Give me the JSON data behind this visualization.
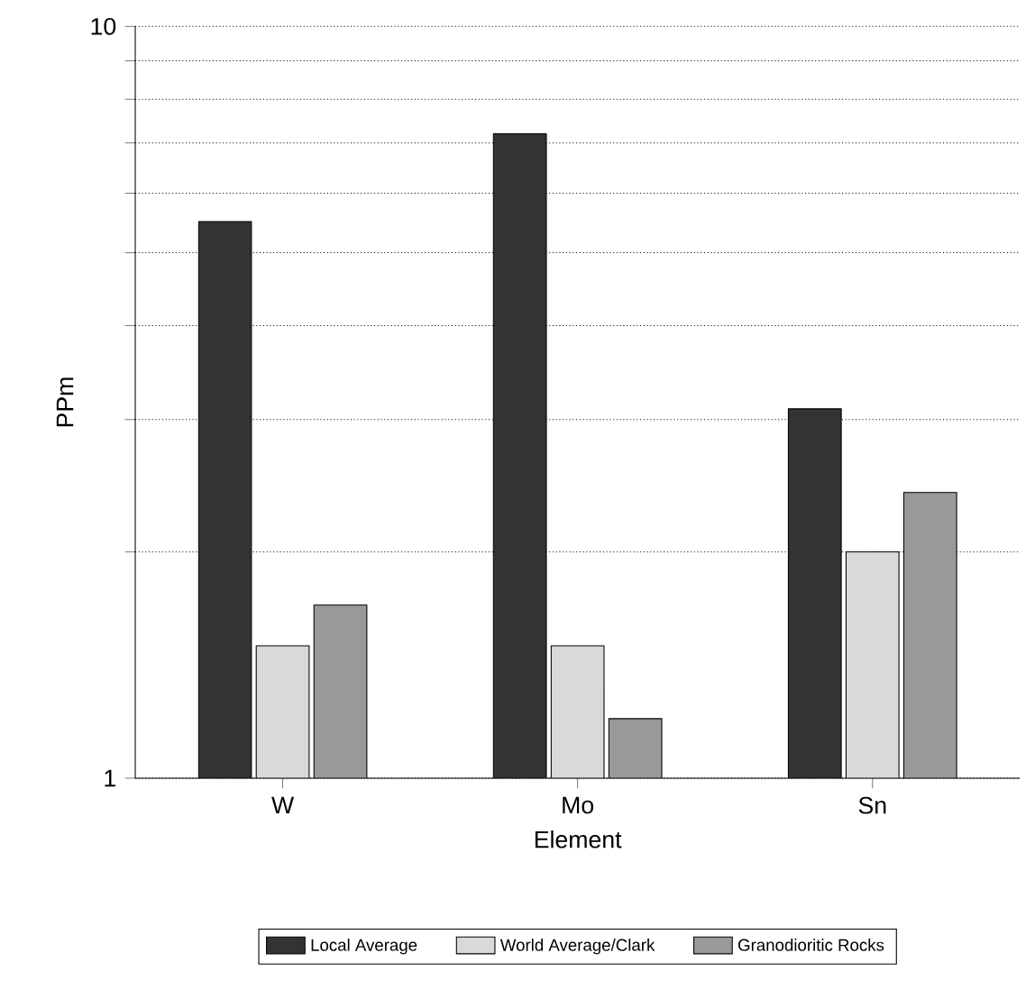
{
  "chart_data": {
    "type": "bar",
    "xlabel": "Element",
    "ylabel": "PPm",
    "categories": [
      "W",
      "Mo",
      "Sn"
    ],
    "series": [
      {
        "name": "Local Average",
        "color": "#333333",
        "values": [
          5.5,
          7.2,
          3.1
        ]
      },
      {
        "name": "World Average/Clark",
        "color": "#d9d9d9",
        "values": [
          1.5,
          1.5,
          2.0
        ]
      },
      {
        "name": "Granodioritic Rocks",
        "color": "#999999",
        "values": [
          1.7,
          1.2,
          2.4
        ]
      }
    ],
    "log": true,
    "ylim": [
      1,
      10
    ],
    "yticks": [
      1,
      {
        "value": 2,
        "label": null
      },
      {
        "value": 3,
        "label": null
      },
      {
        "value": 4,
        "label": null
      },
      {
        "value": 5,
        "label": null
      },
      {
        "value": 6,
        "label": null
      },
      {
        "value": 7,
        "label": null
      },
      {
        "value": 8,
        "label": null
      },
      {
        "value": 9,
        "label": null
      },
      10
    ],
    "grid": "y",
    "legend": "bottom"
  }
}
